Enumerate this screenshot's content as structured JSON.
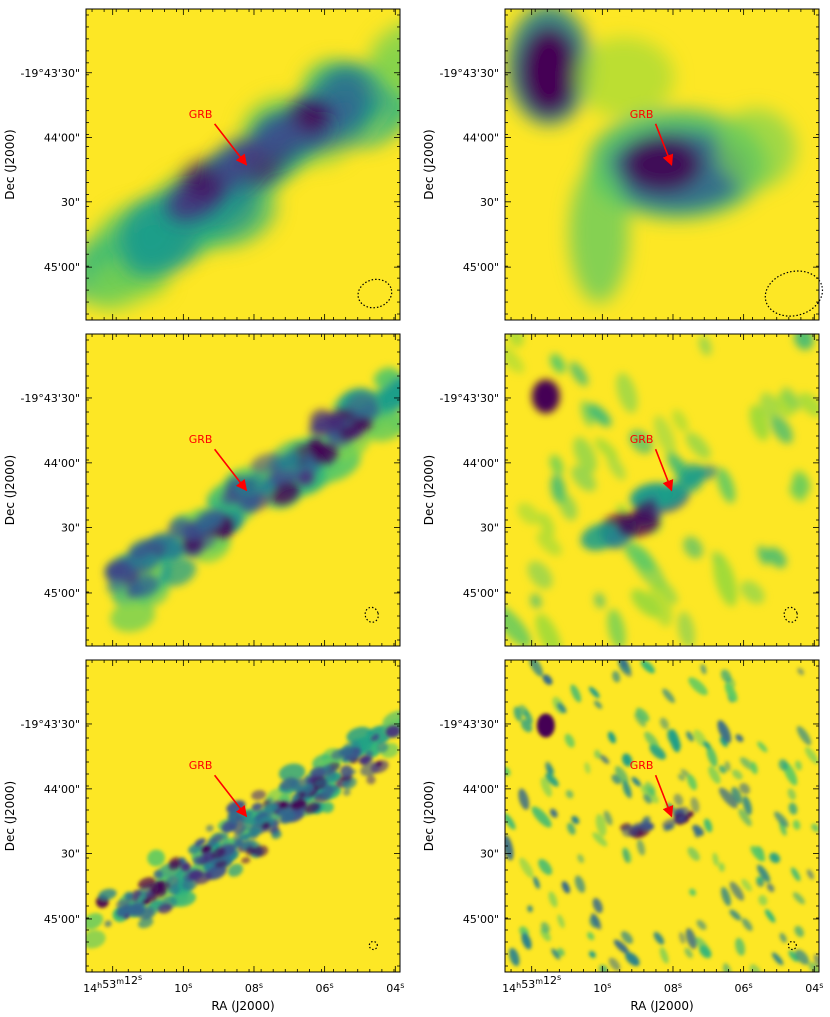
{
  "colors": {
    "background": "#fde725",
    "marker": "#ff0000",
    "frame": "#000000"
  },
  "chart_data": {
    "type": "heatmap",
    "layout": "3 rows x 2 columns of image panels",
    "xlabel": "RA (J2000)",
    "ylabel": "Dec (J2000)",
    "x_tick_labels": [
      "14h53m12s",
      "10s",
      "08s",
      "06s",
      "04s"
    ],
    "x_tick_display": [
      {
        "main": "14",
        "sup1": "h",
        "mid": "53",
        "sup2": "m",
        "tail": "12",
        "sup3": "s"
      },
      {
        "main": "10",
        "sup1": "s"
      },
      {
        "main": "08",
        "sup1": "s"
      },
      {
        "main": "06",
        "sup1": "s"
      },
      {
        "main": "04",
        "sup1": "s"
      }
    ],
    "y_tick_labels": [
      "-19°43'30\"",
      "44'00\"",
      "30\"",
      "45'00\""
    ],
    "annotation": "GRB",
    "colormap": "viridis",
    "panels": [
      {
        "row": 1,
        "col": 1,
        "beam": "large",
        "structure": "smooth elongated emission"
      },
      {
        "row": 1,
        "col": 2,
        "beam": "large",
        "structure": "smooth emission with bright compact source"
      },
      {
        "row": 2,
        "col": 1,
        "beam": "medium",
        "structure": "clumpy elongated emission"
      },
      {
        "row": 2,
        "col": 2,
        "beam": "medium",
        "structure": "clumpy emission with compact source"
      },
      {
        "row": 3,
        "col": 1,
        "beam": "small",
        "structure": "highly clumpy elongated emission"
      },
      {
        "row": 3,
        "col": 2,
        "beam": "small",
        "structure": "scattered clumps with compact source"
      }
    ]
  }
}
